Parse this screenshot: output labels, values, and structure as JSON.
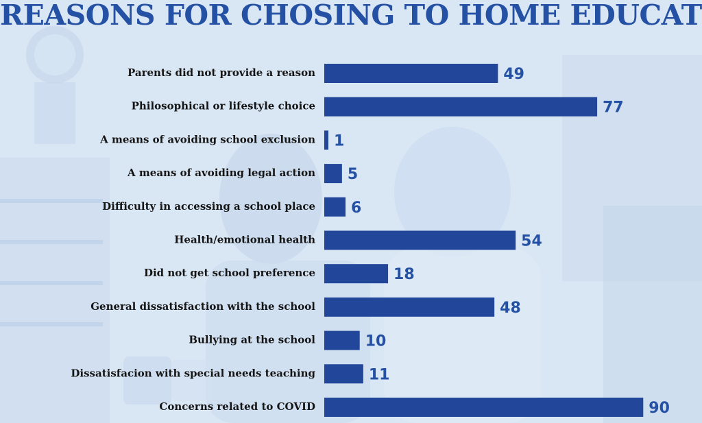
{
  "title": "REASONS FOR CHOSING TO HOME EDUCATE",
  "chart_data": {
    "type": "bar",
    "orientation": "horizontal",
    "title": "REASONS FOR CHOSING TO HOME EDUCATE",
    "categories": [
      "Parents did not provide a reason",
      "Philosophical or lifestyle choice",
      "A means of avoiding school exclusion",
      "A means of avoiding legal action",
      "Difficulty in accessing a school place",
      "Health/emotional health",
      "Did not get school preference",
      "General dissatisfaction with the school",
      "Bullying at the school",
      "Dissatisfacion with special needs teaching",
      "Concerns related to COVID"
    ],
    "values": [
      49,
      77,
      1,
      5,
      6,
      54,
      18,
      48,
      10,
      11,
      90
    ],
    "bar_color": "#21469a",
    "value_label_color": "#2551a4",
    "xlim": [
      0,
      90
    ],
    "grid": false,
    "legend": "none"
  }
}
